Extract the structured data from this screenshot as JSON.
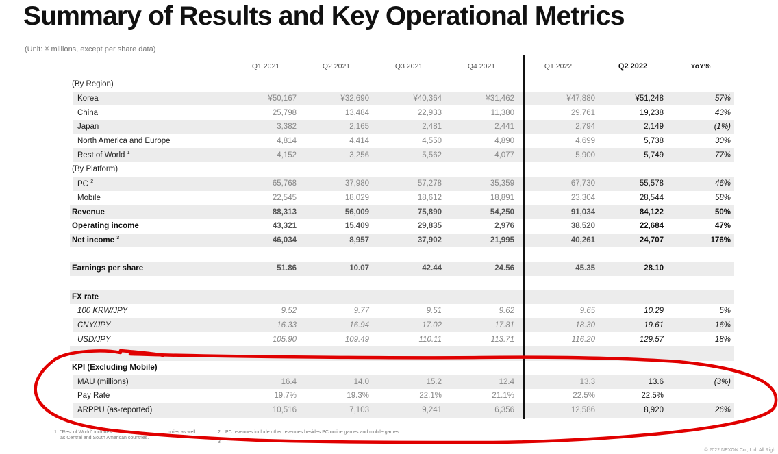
{
  "title": "Summary of Results and Key Operational Metrics",
  "unit_note": "(Unit: ¥ millions, except per share data)",
  "columns": [
    "Q1 2021",
    "Q2 2021",
    "Q3 2021",
    "Q4 2021",
    "Q1 2022",
    "Q2 2022",
    "YoY%"
  ],
  "rows": [
    {
      "label": "(By Region)",
      "kind": "section",
      "cells": [
        "",
        "",
        "",
        "",
        "",
        "",
        ""
      ]
    },
    {
      "label": "Korea",
      "kind": "sub",
      "shade": true,
      "cells": [
        "¥50,167",
        "¥32,690",
        "¥40,364",
        "¥31,462",
        "¥47,880",
        "¥51,248",
        "57%"
      ]
    },
    {
      "label": "China",
      "kind": "sub",
      "shade": false,
      "cells": [
        "25,798",
        "13,484",
        "22,933",
        "11,380",
        "29,761",
        "19,238",
        "43%"
      ]
    },
    {
      "label": "Japan",
      "kind": "sub",
      "shade": true,
      "cells": [
        "3,382",
        "2,165",
        "2,481",
        "2,441",
        "2,794",
        "2,149",
        "(1%)"
      ]
    },
    {
      "label": "North America and Europe",
      "kind": "sub",
      "shade": false,
      "cells": [
        "4,814",
        "4,414",
        "4,550",
        "4,890",
        "4,699",
        "5,738",
        "30%"
      ]
    },
    {
      "label": "Rest of World",
      "sup": "1",
      "kind": "sub",
      "shade": true,
      "cells": [
        "4,152",
        "3,256",
        "5,562",
        "4,077",
        "5,900",
        "5,749",
        "77%"
      ]
    },
    {
      "label": "(By Platform)",
      "kind": "section",
      "cells": [
        "",
        "",
        "",
        "",
        "",
        "",
        ""
      ]
    },
    {
      "label": "PC",
      "sup": "2",
      "kind": "sub",
      "shade": true,
      "cells": [
        "65,768",
        "37,980",
        "57,278",
        "35,359",
        "67,730",
        "55,578",
        "46%"
      ]
    },
    {
      "label": "Mobile",
      "kind": "sub",
      "shade": false,
      "cells": [
        "22,545",
        "18,029",
        "18,612",
        "18,891",
        "23,304",
        "28,544",
        "58%"
      ]
    },
    {
      "label": "Revenue",
      "kind": "bold",
      "shade": true,
      "cells": [
        "88,313",
        "56,009",
        "75,890",
        "54,250",
        "91,034",
        "84,122",
        "50%"
      ]
    },
    {
      "label": "Operating income",
      "kind": "bold",
      "shade": false,
      "cells": [
        "43,321",
        "15,409",
        "29,835",
        "2,976",
        "38,520",
        "22,684",
        "47%"
      ]
    },
    {
      "label": "Net income",
      "sup": "3",
      "kind": "bold",
      "shade": true,
      "cells": [
        "46,034",
        "8,957",
        "37,902",
        "21,995",
        "40,261",
        "24,707",
        "176%"
      ]
    },
    {
      "label": "",
      "kind": "blank",
      "cells": [
        "",
        "",
        "",
        "",
        "",
        "",
        ""
      ]
    },
    {
      "label": "Earnings per share",
      "kind": "bold",
      "shade": true,
      "cells": [
        "51.86",
        "10.07",
        "42.44",
        "24.56",
        "45.35",
        "28.10",
        ""
      ]
    },
    {
      "label": "",
      "kind": "blank",
      "cells": [
        "",
        "",
        "",
        "",
        "",
        "",
        ""
      ]
    },
    {
      "label": "FX rate",
      "kind": "bold",
      "shade": true,
      "cells": [
        "",
        "",
        "",
        "",
        "",
        "",
        ""
      ]
    },
    {
      "label": "100 KRW/JPY",
      "kind": "sub",
      "italic": true,
      "shade": false,
      "cells": [
        "9.52",
        "9.77",
        "9.51",
        "9.62",
        "9.65",
        "10.29",
        "5%"
      ]
    },
    {
      "label": "CNY/JPY",
      "kind": "sub",
      "italic": true,
      "shade": true,
      "cells": [
        "16.33",
        "16.94",
        "17.02",
        "17.81",
        "18.30",
        "19.61",
        "16%"
      ]
    },
    {
      "label": "USD/JPY",
      "kind": "sub",
      "italic": true,
      "shade": false,
      "cells": [
        "105.90",
        "109.49",
        "110.11",
        "113.71",
        "116.20",
        "129.57",
        "18%"
      ]
    },
    {
      "label": "",
      "kind": "blank",
      "shade": true,
      "cells": [
        "",
        "",
        "",
        "",
        "",
        "",
        ""
      ]
    },
    {
      "label": "KPI (Excluding Mobile)",
      "kind": "bold",
      "shade": false,
      "cells": [
        "",
        "",
        "",
        "",
        "",
        "",
        ""
      ]
    },
    {
      "label": "MAU (millions)",
      "kind": "sub",
      "shade": true,
      "cells": [
        "16.4",
        "14.0",
        "15.2",
        "12.4",
        "13.3",
        "13.6",
        "(3%)"
      ]
    },
    {
      "label": "Pay Rate",
      "kind": "sub",
      "shade": false,
      "cells": [
        "19.7%",
        "19.3%",
        "22.1%",
        "21.1%",
        "22.5%",
        "22.5%",
        ""
      ]
    },
    {
      "label": "ARPPU (as-reported)",
      "kind": "sub",
      "shade": true,
      "cells": [
        "10,516",
        "7,103",
        "9,241",
        "6,356",
        "12,586",
        "8,920",
        "26%"
      ]
    }
  ],
  "footnotes": {
    "f1_num": "1",
    "f1_text_a": "\"Rest of World\" includes",
    "f1_text_b": "ntries as well",
    "f1_text_c": "as Central and South American countries.",
    "f2_num": "2",
    "f2_text": "PC revenues include other revenues besides PC online games and mobile games.",
    "f3_num": "3"
  },
  "copyright": "© 2022 NEXON Co., Ltd. All Righ",
  "annotation": {
    "color": "#e00000"
  }
}
